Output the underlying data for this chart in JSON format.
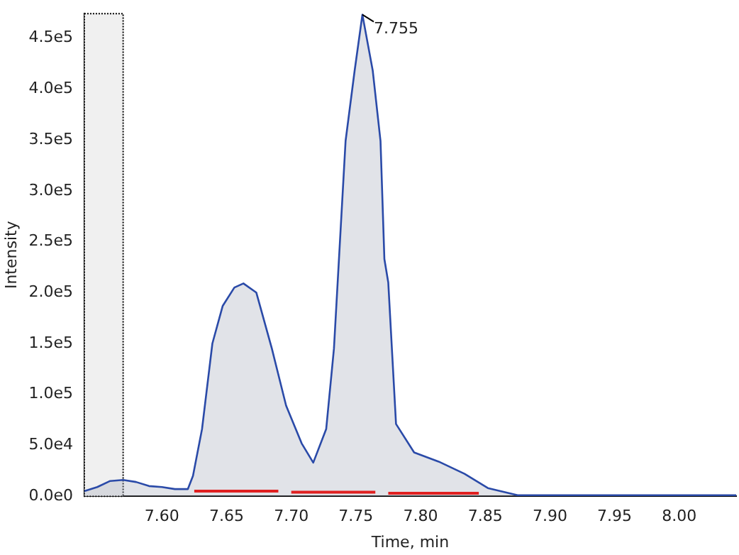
{
  "chart_data": {
    "type": "area",
    "xlabel": "Time, min",
    "ylabel": "Intensity",
    "xlim": [
      7.54,
      8.044
    ],
    "ylim": [
      0,
      474000
    ],
    "xticks": [
      {
        "value": 7.6,
        "label": "7.60"
      },
      {
        "value": 7.65,
        "label": "7.65"
      },
      {
        "value": 7.7,
        "label": "7.70"
      },
      {
        "value": 7.75,
        "label": "7.75"
      },
      {
        "value": 7.8,
        "label": "7.80"
      },
      {
        "value": 7.85,
        "label": "7.85"
      },
      {
        "value": 7.9,
        "label": "7.90"
      },
      {
        "value": 7.95,
        "label": "7.95"
      },
      {
        "value": 8.0,
        "label": "8.00"
      }
    ],
    "yticks": [
      {
        "value": 0,
        "label": "0.0e0"
      },
      {
        "value": 50000,
        "label": "5.0e4"
      },
      {
        "value": 100000,
        "label": "1.0e5"
      },
      {
        "value": 150000,
        "label": "1.5e5"
      },
      {
        "value": 200000,
        "label": "2.0e5"
      },
      {
        "value": 250000,
        "label": "2.5e5"
      },
      {
        "value": 300000,
        "label": "3.0e5"
      },
      {
        "value": 350000,
        "label": "3.5e5"
      },
      {
        "value": 400000,
        "label": "4.0e5"
      },
      {
        "value": 450000,
        "label": "4.5e5"
      }
    ],
    "series": [
      {
        "color": "#2a4aa8",
        "x": [
          7.54,
          7.55,
          7.56,
          7.57,
          7.58,
          7.59,
          7.6,
          7.61,
          7.62,
          7.624,
          7.631,
          7.639,
          7.647,
          7.656,
          7.663,
          7.673,
          7.685,
          7.696,
          7.708,
          7.717,
          7.727,
          7.733,
          7.742,
          7.749,
          7.755,
          7.763,
          7.769,
          7.772,
          7.775,
          7.781,
          7.795,
          7.814,
          7.834,
          7.852,
          7.875,
          7.9,
          7.95,
          8.0,
          8.044
        ],
        "values": [
          5000,
          9000,
          15000,
          16000,
          14000,
          10000,
          9000,
          7000,
          7000,
          20000,
          66000,
          150000,
          187000,
          205000,
          209000,
          200000,
          145000,
          89000,
          52000,
          33000,
          66000,
          145000,
          349000,
          418000,
          473000,
          418000,
          349000,
          233000,
          210000,
          71000,
          43000,
          34000,
          22000,
          8000,
          1000,
          1000,
          1000,
          1000,
          1000
        ]
      },
      {
        "type": "line",
        "color": "#e02020",
        "x": [
          7.625,
          7.69,
          7.693,
          7.7,
          7.765,
          7.768,
          7.775,
          7.845
        ],
        "values": [
          5000,
          5000,
          null,
          4000,
          4000,
          null,
          3000,
          3000
        ]
      }
    ],
    "bands": [
      {
        "axis": "x",
        "from": 7.54,
        "to": 7.57,
        "color": "#f0f0f0"
      }
    ],
    "annotations": [
      {
        "text": "7.755",
        "x": 7.755,
        "y": 473000
      }
    ],
    "grid": false,
    "legend": false,
    "marker": "none"
  }
}
